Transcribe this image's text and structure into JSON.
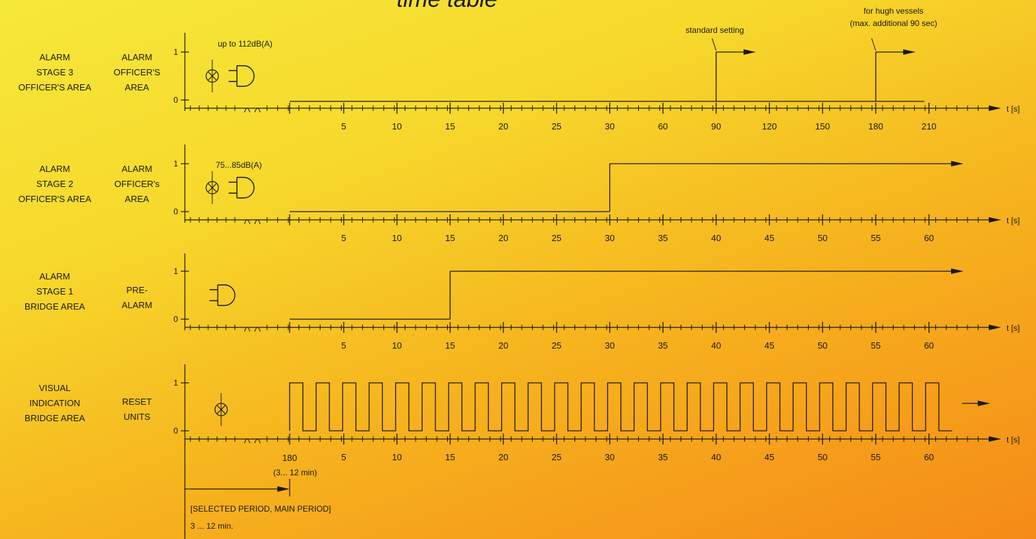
{
  "title": "time table",
  "unit_label": "t [s]",
  "level_labels": [
    "1",
    "0"
  ],
  "period_note": {
    "start_tick": "180",
    "start_range": "(3... 12 min)",
    "label": "[SELECTED PERIOD, MAIN PERIOD]",
    "range": "3 ... 12 min."
  },
  "rows": [
    {
      "name": "alarm-stage-3",
      "left_label": [
        "ALARM",
        "STAGE 3",
        "OFFICER'S AREA"
      ],
      "mid_label": [
        "ALARM",
        "OFFICER'S",
        "AREA"
      ],
      "ticks": [
        "5",
        "10",
        "15",
        "20",
        "25",
        "30",
        "60",
        "90",
        "120",
        "150",
        "180",
        "210"
      ],
      "devices": [
        "lamp-icon",
        "horn-icon"
      ],
      "device_note": "up to 112dB(A)",
      "signal": {
        "type": "step",
        "steps_at": [
          "90",
          "180"
        ]
      },
      "annotations": [
        {
          "text": [
            "standard setting"
          ],
          "at": "90"
        },
        {
          "text": [
            "for hugh vessels",
            "(max. additional 90 sec)"
          ],
          "at": "180"
        }
      ]
    },
    {
      "name": "alarm-stage-2",
      "left_label": [
        "ALARM",
        "STAGE 2",
        "OFFICER'S AREA"
      ],
      "mid_label": [
        "ALARM",
        "OFFICER's",
        "AREA"
      ],
      "ticks": [
        "5",
        "10",
        "15",
        "20",
        "25",
        "30",
        "35",
        "40",
        "45",
        "50",
        "55",
        "60"
      ],
      "devices": [
        "lamp-icon",
        "horn-icon"
      ],
      "device_note": "75...85dB(A)",
      "signal": {
        "type": "step",
        "steps_at": [
          "30"
        ]
      }
    },
    {
      "name": "alarm-stage-1",
      "left_label": [
        "ALARM",
        "STAGE 1",
        "BRIDGE AREA"
      ],
      "mid_label": [
        "PRE-",
        "ALARM"
      ],
      "ticks": [
        "5",
        "10",
        "15",
        "20",
        "25",
        "30",
        "35",
        "40",
        "45",
        "50",
        "55",
        "60"
      ],
      "devices": [
        "horn-icon"
      ],
      "device_note": "",
      "signal": {
        "type": "step",
        "steps_at": [
          "15"
        ]
      }
    },
    {
      "name": "visual-indication",
      "left_label": [
        "VISUAL",
        "INDICATION",
        "BRIDGE AREA"
      ],
      "mid_label": [
        "RESET",
        "UNITS"
      ],
      "ticks": [
        "5",
        "10",
        "15",
        "20",
        "25",
        "30",
        "35",
        "40",
        "45",
        "50",
        "55",
        "60"
      ],
      "devices": [
        "lamp-icon"
      ],
      "device_note": "",
      "signal": {
        "type": "pulse"
      }
    }
  ]
}
